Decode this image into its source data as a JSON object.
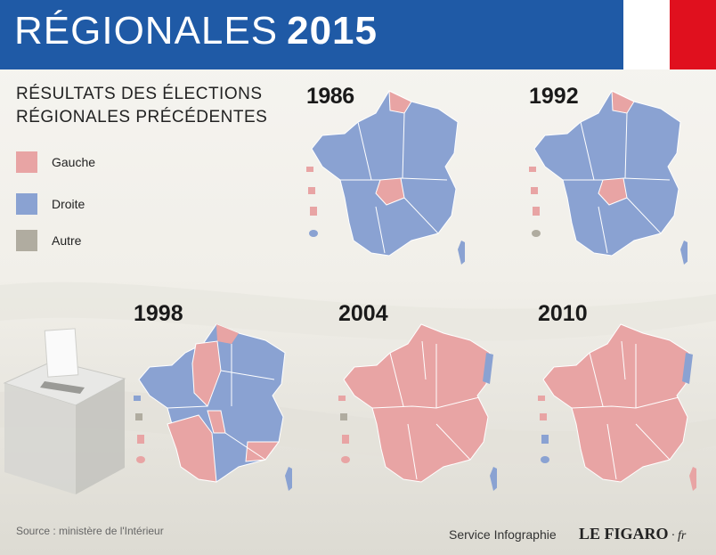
{
  "header": {
    "title": "RÉGIONALES",
    "year": "2015",
    "colors": {
      "band": "#1f5aa6",
      "flag_blue": "#1f5aa6",
      "flag_white": "#ffffff",
      "flag_red": "#e0101e"
    }
  },
  "subtitle": {
    "line1": "RÉSULTATS DES ÉLECTIONS",
    "line2": "RÉGIONALES PRÉCÉDENTES"
  },
  "legend": [
    {
      "label": "Gauche",
      "color": "#e8a4a4"
    },
    {
      "label": "Droite",
      "color": "#8aa2d2"
    },
    {
      "label": "Autre",
      "color": "#b0aca0"
    }
  ],
  "maps": [
    {
      "year": "1986",
      "dominant": "Droite",
      "gauche_regions": [
        "Nord-Pas-de-Calais",
        "Limousin"
      ]
    },
    {
      "year": "1992",
      "dominant": "Droite",
      "gauche_regions": [
        "Nord-Pas-de-Calais",
        "Limousin"
      ],
      "autre_regions": [
        "Réunion"
      ]
    },
    {
      "year": "1998",
      "dominant": "Mixed",
      "autre_regions": [
        "Martinique"
      ]
    },
    {
      "year": "2004",
      "dominant": "Gauche",
      "droite_regions": [
        "Alsace",
        "Corse"
      ],
      "autre_regions": [
        "Martinique"
      ]
    },
    {
      "year": "2010",
      "dominant": "Gauche",
      "droite_regions": [
        "Alsace",
        "Guyane",
        "Réunion"
      ]
    }
  ],
  "footer": {
    "source": "Source : ministère  de l'Intérieur",
    "credit": "Service Infographie",
    "brand": "LE FIGARO",
    "brand_suffix": "fr"
  }
}
